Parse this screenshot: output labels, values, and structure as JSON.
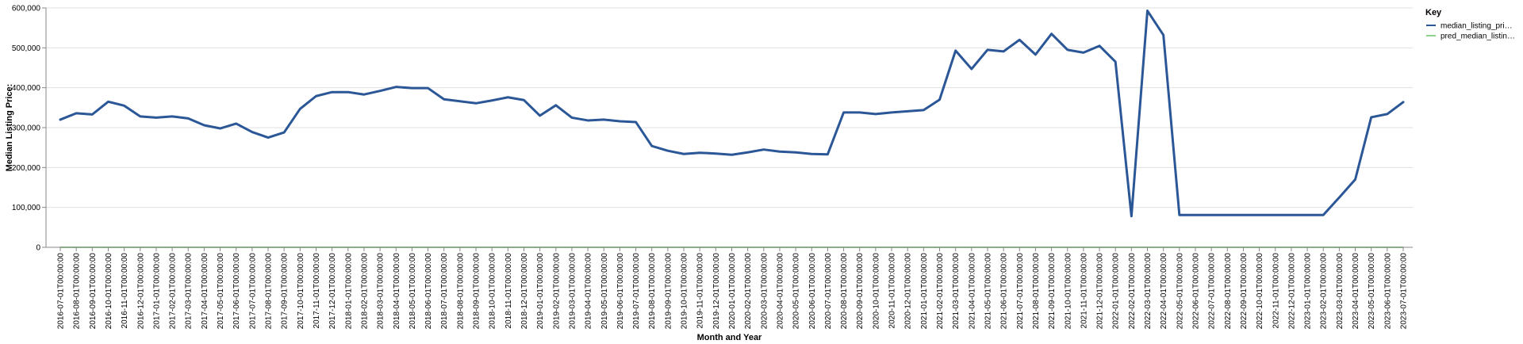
{
  "chart_data": {
    "type": "line",
    "xlabel": "Month and Year",
    "ylabel": "Median Listing Price:",
    "ylim": [
      0,
      600000
    ],
    "y_ticks": [
      "0",
      "100,000",
      "200,000",
      "300,000",
      "400,000",
      "500,000",
      "600,000"
    ],
    "grid": true,
    "legend": {
      "title": "Key",
      "position": "top-right",
      "entries": [
        {
          "label": "median_listing_pri…",
          "color": "#2b5797"
        },
        {
          "label": "pred_median_listin…",
          "color": "#8fd18a"
        }
      ]
    },
    "x": [
      "2016-07-01T00:00:00",
      "2016-08-01T00:00:00",
      "2016-09-01T00:00:00",
      "2016-10-01T00:00:00",
      "2016-11-01T00:00:00",
      "2016-12-01T00:00:00",
      "2017-01-01T00:00:00",
      "2017-02-01T00:00:00",
      "2017-03-01T00:00:00",
      "2017-04-01T00:00:00",
      "2017-05-01T00:00:00",
      "2017-06-01T00:00:00",
      "2017-07-01T00:00:00",
      "2017-08-01T00:00:00",
      "2017-09-01T00:00:00",
      "2017-10-01T00:00:00",
      "2017-11-01T00:00:00",
      "2017-12-01T00:00:00",
      "2018-01-01T00:00:00",
      "2018-02-01T00:00:00",
      "2018-03-01T00:00:00",
      "2018-04-01T00:00:00",
      "2018-05-01T00:00:00",
      "2018-06-01T00:00:00",
      "2018-07-01T00:00:00",
      "2018-08-01T00:00:00",
      "2018-09-01T00:00:00",
      "2018-10-01T00:00:00",
      "2018-11-01T00:00:00",
      "2018-12-01T00:00:00",
      "2019-01-01T00:00:00",
      "2019-02-01T00:00:00",
      "2019-03-01T00:00:00",
      "2019-04-01T00:00:00",
      "2019-05-01T00:00:00",
      "2019-06-01T00:00:00",
      "2019-07-01T00:00:00",
      "2019-08-01T00:00:00",
      "2019-09-01T00:00:00",
      "2019-10-01T00:00:00",
      "2019-11-01T00:00:00",
      "2019-12-01T00:00:00",
      "2020-01-01T00:00:00",
      "2020-02-01T00:00:00",
      "2020-03-01T00:00:00",
      "2020-04-01T00:00:00",
      "2020-05-01T00:00:00",
      "2020-06-01T00:00:00",
      "2020-07-01T00:00:00",
      "2020-08-01T00:00:00",
      "2020-09-01T00:00:00",
      "2020-10-01T00:00:00",
      "2020-11-01T00:00:00",
      "2020-12-01T00:00:00",
      "2021-01-01T00:00:00",
      "2021-02-01T00:00:00",
      "2021-03-01T00:00:00",
      "2021-04-01T00:00:00",
      "2021-05-01T00:00:00",
      "2021-06-01T00:00:00",
      "2021-07-01T00:00:00",
      "2021-08-01T00:00:00",
      "2021-09-01T00:00:00",
      "2021-10-01T00:00:00",
      "2021-11-01T00:00:00",
      "2021-12-01T00:00:00",
      "2022-01-01T00:00:00",
      "2022-02-01T00:00:00",
      "2022-03-01T00:00:00",
      "2022-04-01T00:00:00",
      "2022-05-01T00:00:00",
      "2022-06-01T00:00:00",
      "2022-07-01T00:00:00",
      "2022-08-01T00:00:00",
      "2022-09-01T00:00:00",
      "2022-10-01T00:00:00",
      "2022-11-01T00:00:00",
      "2022-12-01T00:00:00",
      "2023-01-01T00:00:00",
      "2023-02-01T00:00:00",
      "2023-03-01T00:00:00",
      "2023-04-01T00:00:00",
      "2023-05-01T00:00:00",
      "2023-06-01T00:00:00",
      "2023-07-01T00:00:00"
    ],
    "series": [
      {
        "name": "median_listing_pri…",
        "color": "#2b5797",
        "values": [
          320000,
          336000,
          333000,
          365000,
          355000,
          328000,
          325000,
          328000,
          323000,
          306000,
          298000,
          310000,
          289000,
          275000,
          288000,
          347000,
          379000,
          389000,
          389000,
          383000,
          392000,
          402000,
          399000,
          399000,
          371000,
          366000,
          361000,
          368000,
          376000,
          369000,
          330000,
          356000,
          325000,
          318000,
          320000,
          316000,
          314000,
          254000,
          242000,
          234000,
          237000,
          235000,
          232000,
          238000,
          245000,
          240000,
          238000,
          234000,
          233000,
          338000,
          338000,
          334000,
          338000,
          341000,
          344000,
          370000,
          493000,
          447000,
          495000,
          491000,
          520000,
          483000,
          535000,
          495000,
          488000,
          505000,
          465000,
          78000,
          593000,
          532000,
          81000,
          81000,
          81000,
          81000,
          81000,
          81000,
          81000,
          81000,
          81000,
          81000,
          125000,
          170000,
          326000,
          334000,
          364000
        ]
      },
      {
        "name": "pred_median_listin…",
        "color": "#8fd18a",
        "values": [
          0,
          0,
          0,
          0,
          0,
          0,
          0,
          0,
          0,
          0,
          0,
          0,
          0,
          0,
          0,
          0,
          0,
          0,
          0,
          0,
          0,
          0,
          0,
          0,
          0,
          0,
          0,
          0,
          0,
          0,
          0,
          0,
          0,
          0,
          0,
          0,
          0,
          0,
          0,
          0,
          0,
          0,
          0,
          0,
          0,
          0,
          0,
          0,
          0,
          0,
          0,
          0,
          0,
          0,
          0,
          0,
          0,
          0,
          0,
          0,
          0,
          0,
          0,
          0,
          0,
          0,
          0,
          0,
          0,
          0,
          0,
          0,
          0,
          0,
          0,
          0,
          0,
          0,
          0,
          0,
          0,
          0,
          0,
          0,
          0
        ]
      }
    ]
  }
}
